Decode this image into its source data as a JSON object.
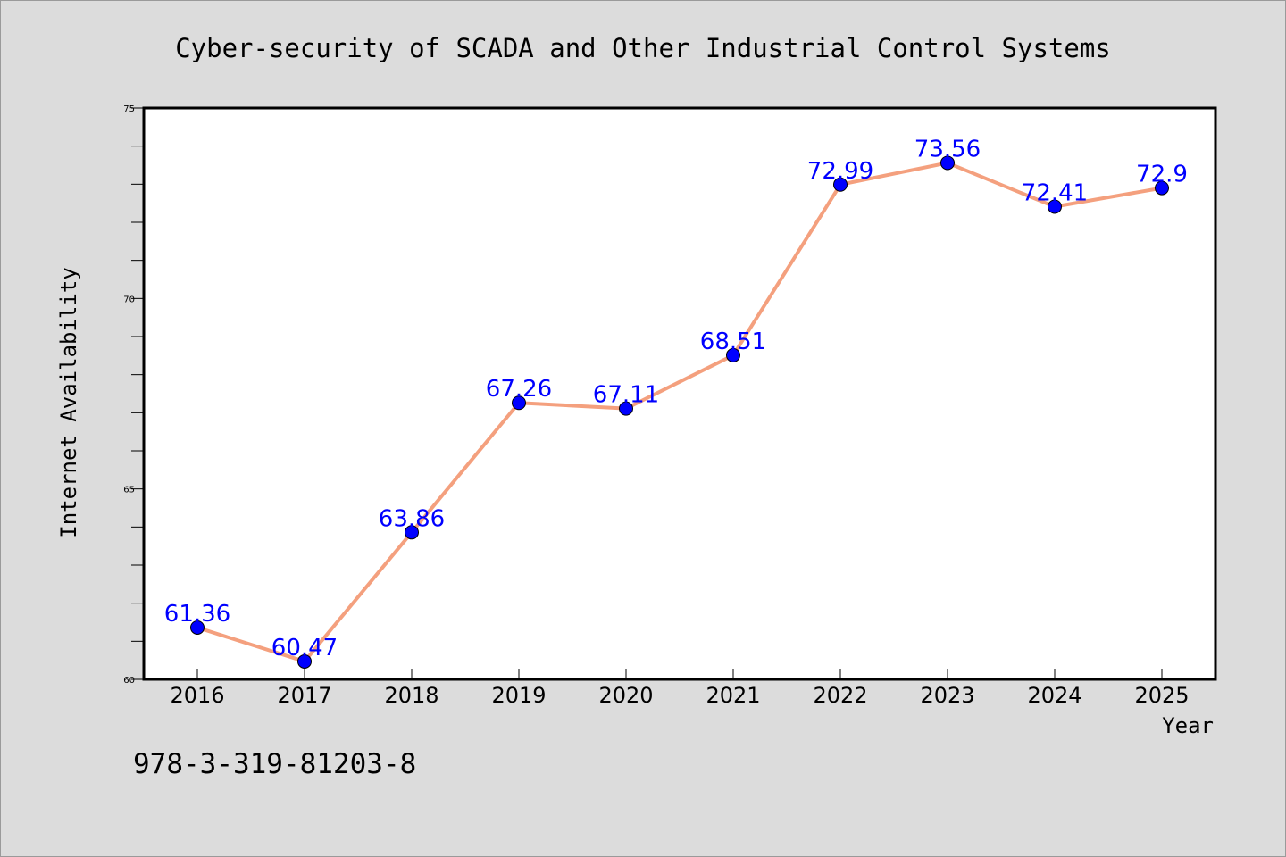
{
  "figure": {
    "background": "#dcdcdc",
    "isbn_text": "978-3-319-81203-8"
  },
  "chart_data": {
    "type": "line",
    "title": "Cyber-security of SCADA and Other Industrial Control Systems",
    "xlabel": "Year",
    "ylabel": "Internet Availability",
    "categories": [
      "2016",
      "2017",
      "2018",
      "2019",
      "2020",
      "2021",
      "2022",
      "2023",
      "2024",
      "2025"
    ],
    "series": [
      {
        "values": [
          61.36,
          60.47,
          63.86,
          67.26,
          67.11,
          68.51,
          72.99,
          73.56,
          72.41,
          72.9
        ],
        "labels": [
          "61.36",
          "60.47",
          "63.86",
          "67.26",
          "67.11",
          "68.51",
          "72.99",
          "73.56",
          "72.41",
          "72.9"
        ],
        "line_color": "#f4a07e",
        "marker_color": "#0000ff",
        "label_color": "#0000ff"
      }
    ],
    "ylim": [
      60,
      75
    ],
    "yticks": [
      60,
      65,
      70,
      75
    ],
    "ytick_labels": [
      "60",
      "65",
      "70",
      "75"
    ],
    "y_minor_step": 1,
    "grid": false,
    "legend": "none",
    "plot_background": "#ffffff"
  }
}
